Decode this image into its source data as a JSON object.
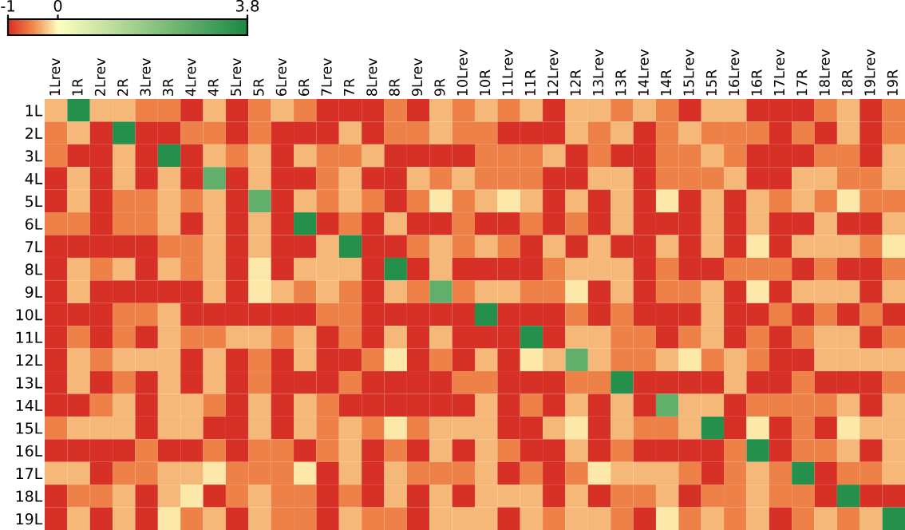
{
  "chart_data": {
    "type": "heatmap",
    "categories": [
      "1Lrev",
      "1R",
      "2Lrev",
      "2R",
      "3Lrev",
      "3R",
      "4Lrev",
      "4R",
      "5Lrev",
      "5R",
      "6Lrev",
      "6R",
      "7Lrev",
      "7R",
      "8Lrev",
      "8R",
      "9Lrev",
      "9R",
      "10Lrev",
      "10R",
      "11Lrev",
      "11R",
      "12Lrev",
      "12R",
      "13Lrev",
      "13R",
      "14Lrev",
      "14R",
      "15Lrev",
      "15R",
      "16Lrev",
      "16R",
      "17Lrev",
      "17R",
      "18Lrev",
      "18R",
      "19Lrev",
      "19R"
    ],
    "y_categories": [
      "1L",
      "2L",
      "3L",
      "4L",
      "5L",
      "6L",
      "7L",
      "8L",
      "9L",
      "10L",
      "11L",
      "12L",
      "13L",
      "14L",
      "15L",
      "16L",
      "17L",
      "18L",
      "19L"
    ],
    "cells": [
      [
        -0.3,
        3.6,
        -0.3,
        -0.3,
        -0.55,
        -0.55,
        -1,
        -0.3,
        -1,
        -0.55,
        -0.3,
        -0.55,
        -1,
        -1,
        -1,
        -0.55,
        -1,
        -0.3,
        -0.55,
        -0.3,
        -0.55,
        -0.3,
        -1,
        -0.3,
        -0.3,
        -0.55,
        -0.3,
        -0.55,
        -1,
        -0.3,
        -0.3,
        -1,
        -1,
        -1,
        -0.55,
        -0.3,
        -1,
        -0.55
      ],
      [
        -0.55,
        -0.3,
        -1,
        3.6,
        -1,
        -1,
        -0.55,
        -0.55,
        -1,
        -0.55,
        -1,
        -1,
        -1,
        -0.3,
        -1,
        -0.55,
        -0.55,
        -0.3,
        -0.55,
        -0.55,
        -1,
        -1,
        -1,
        -0.3,
        -0.55,
        -0.3,
        -1,
        -0.55,
        -0.3,
        -0.55,
        -0.55,
        -0.55,
        -1,
        -0.55,
        -1,
        -0.3,
        -1,
        -0.55
      ],
      [
        -0.55,
        -1,
        -1,
        -0.3,
        -1,
        3.6,
        -1,
        -0.3,
        -0.55,
        -0.3,
        -1,
        -0.3,
        -0.55,
        -0.55,
        -0.3,
        -1,
        -1,
        -1,
        -1,
        -0.55,
        -0.55,
        -0.55,
        -0.3,
        -1,
        -0.55,
        -1,
        -1,
        -0.55,
        -0.55,
        -0.3,
        -0.55,
        -1,
        -1,
        -1,
        -0.55,
        -0.55,
        -1,
        -0.3
      ],
      [
        -1,
        -0.3,
        -1,
        -0.3,
        -1,
        -0.3,
        -1,
        2.6,
        -1,
        -0.3,
        -1,
        -1,
        -0.55,
        -0.3,
        -1,
        -1,
        -0.3,
        -0.55,
        -0.3,
        -0.55,
        -0.55,
        -0.55,
        -1,
        -1,
        -0.3,
        -0.3,
        -1,
        -0.55,
        -0.55,
        -0.55,
        -0.3,
        -1,
        -1,
        -0.3,
        -0.3,
        -0.55,
        -0.55,
        -0.3
      ],
      [
        -1,
        -0.3,
        -1,
        -0.55,
        -0.55,
        -0.3,
        -0.55,
        -0.3,
        -1,
        2.6,
        -1,
        -0.3,
        -0.55,
        -0.3,
        -0.55,
        -1,
        -0.55,
        -0.1,
        -0.55,
        -0.3,
        -0.1,
        -0.3,
        -1,
        -0.3,
        -1,
        -0.3,
        -1,
        -0.1,
        -1,
        -0.3,
        -1,
        -0.3,
        -0.55,
        -0.3,
        -0.55,
        -0.1,
        -0.55,
        -0.55
      ],
      [
        -0.55,
        -0.55,
        -1,
        -0.55,
        -0.55,
        -0.3,
        -1,
        -0.3,
        -1,
        -0.3,
        -1,
        3.6,
        -1,
        -0.55,
        -1,
        -0.3,
        -1,
        -1,
        -0.55,
        -1,
        -1,
        -0.55,
        -1,
        -0.55,
        -1,
        -0.3,
        -1,
        -1,
        -1,
        -0.3,
        -1,
        -0.3,
        -1,
        -1,
        -0.3,
        -1,
        -1,
        -0.3
      ],
      [
        -1,
        -1,
        -1,
        -1,
        -1,
        -0.55,
        -0.55,
        -0.3,
        -1,
        -0.3,
        -1,
        -1,
        -0.3,
        3.6,
        -1,
        -1,
        -0.55,
        -0.3,
        -0.55,
        -0.3,
        -0.55,
        -1,
        -0.3,
        -1,
        -0.3,
        -1,
        -1,
        -0.3,
        -1,
        -0.3,
        -1,
        -0.1,
        -1,
        -0.3,
        -0.3,
        -0.3,
        -0.55,
        -0.1
      ],
      [
        -1,
        -0.3,
        -0.55,
        -0.3,
        -1,
        -0.3,
        -0.55,
        -0.3,
        -1,
        -0.1,
        -1,
        -0.3,
        -0.3,
        -0.3,
        -1,
        3.6,
        -1,
        -0.3,
        -1,
        -1,
        -1,
        -1,
        -0.55,
        -0.3,
        -0.3,
        -0.3,
        -1,
        -0.55,
        -1,
        -1,
        -0.55,
        -0.55,
        -0.55,
        -1,
        -0.55,
        -1,
        -1,
        -0.55
      ],
      [
        -1,
        -0.3,
        -1,
        -1,
        -1,
        -1,
        -1,
        -0.3,
        -1,
        -0.1,
        -0.3,
        -0.55,
        -0.3,
        -0.55,
        -1,
        -0.3,
        -0.55,
        2.6,
        -0.55,
        -0.3,
        -0.3,
        -0.55,
        -0.55,
        -0.1,
        -1,
        -0.3,
        -1,
        -0.55,
        -0.55,
        -0.3,
        -1,
        -0.1,
        -1,
        -0.3,
        -0.3,
        -0.3,
        -1,
        -0.3
      ],
      [
        -1,
        -1,
        -1,
        -0.55,
        -0.55,
        -0.3,
        -1,
        -1,
        -1,
        -1,
        -1,
        -1,
        -0.55,
        -0.55,
        -1,
        -1,
        -1,
        -1,
        -1,
        3.6,
        -1,
        -1,
        -1,
        -0.55,
        -1,
        -0.55,
        -1,
        -1,
        -1,
        -0.3,
        -1,
        -1,
        -0.55,
        -1,
        -0.55,
        -1,
        -0.55,
        -1
      ],
      [
        -1,
        -0.55,
        -1,
        -0.55,
        -1,
        -0.3,
        -0.55,
        -0.55,
        -0.3,
        -0.3,
        -0.55,
        -0.3,
        -1,
        -0.55,
        -1,
        -0.3,
        -1,
        -0.3,
        -1,
        -1,
        -1,
        3.6,
        -1,
        -0.3,
        -0.3,
        -0.55,
        -0.55,
        -1,
        -0.55,
        -0.3,
        -1,
        -0.55,
        -1,
        -0.55,
        -0.3,
        -0.3,
        -1,
        -0.55
      ],
      [
        -1,
        -0.3,
        -0.55,
        -0.3,
        -0.3,
        -0.3,
        -1,
        -0.3,
        -1,
        -0.55,
        -1,
        -0.3,
        -1,
        -1,
        -0.55,
        -0.1,
        -1,
        -0.55,
        -1,
        -0.3,
        -1,
        -0.1,
        -0.3,
        2.6,
        -0.3,
        -0.55,
        -0.55,
        -0.3,
        -0.1,
        -0.55,
        -0.3,
        -0.55,
        -1,
        -1,
        -0.3,
        -0.3,
        -0.3,
        -0.3
      ],
      [
        -1,
        -0.3,
        -1,
        -0.55,
        -1,
        -0.3,
        -1,
        -0.3,
        -1,
        -0.55,
        -1,
        -1,
        -1,
        -0.55,
        -1,
        -1,
        -1,
        -1,
        -0.55,
        -0.55,
        -1,
        -1,
        -1,
        -0.55,
        -0.55,
        3.6,
        -1,
        -1,
        -1,
        -1,
        -0.3,
        -1,
        -1,
        -0.55,
        -1,
        -1,
        -1,
        -0.55
      ],
      [
        -1,
        -1,
        -0.55,
        -0.3,
        -1,
        -0.3,
        -0.3,
        -0.55,
        -1,
        -0.3,
        -1,
        -0.3,
        -0.55,
        -1,
        -1,
        -1,
        -1,
        -1,
        -1,
        -0.3,
        -1,
        -0.55,
        -1,
        -0.3,
        -1,
        -0.3,
        -1,
        2.6,
        -0.3,
        -0.3,
        -1,
        -0.55,
        -0.55,
        -0.55,
        -0.55,
        -0.3,
        -1,
        -0.3
      ],
      [
        -0.55,
        -0.3,
        -0.3,
        -0.3,
        -1,
        -0.3,
        -0.3,
        -1,
        -1,
        -0.3,
        -1,
        -0.3,
        -0.55,
        -0.3,
        -0.55,
        -0.1,
        -0.55,
        -0.3,
        -0.3,
        -0.3,
        -1,
        -1,
        -0.3,
        -0.1,
        -1,
        -0.3,
        -0.55,
        -0.55,
        -0.3,
        3.6,
        -1,
        -0.1,
        -1,
        -0.55,
        -1,
        -0.1,
        -0.3,
        -0.3
      ],
      [
        -1,
        -1,
        -1,
        -1,
        -0.55,
        -1,
        -1,
        -0.55,
        -1,
        -0.55,
        -0.55,
        -1,
        -0.55,
        -0.3,
        -1,
        -0.55,
        -1,
        -0.3,
        -1,
        -0.3,
        -0.55,
        -1,
        -1,
        -0.3,
        -1,
        -0.55,
        -1,
        -1,
        -1,
        -1,
        -0.55,
        3.6,
        -1,
        -0.55,
        -0.55,
        -0.3,
        -1,
        -0.3
      ],
      [
        -0.3,
        -0.3,
        -1,
        -0.55,
        -0.55,
        -0.3,
        -0.3,
        -0.1,
        -0.55,
        -0.55,
        -0.55,
        -0.1,
        -1,
        -0.3,
        -1,
        -0.3,
        -0.55,
        -0.55,
        -0.55,
        -0.3,
        -1,
        -0.55,
        -1,
        -0.55,
        -0.1,
        -0.3,
        -0.3,
        -0.3,
        -0.55,
        -1,
        -0.55,
        -0.3,
        -0.55,
        3.6,
        -1,
        -0.55,
        -0.55,
        -0.3
      ],
      [
        -1,
        -0.55,
        -0.55,
        -0.3,
        -1,
        -0.3,
        -0.1,
        -1,
        -0.55,
        -0.3,
        -0.55,
        -0.55,
        -1,
        -0.55,
        -1,
        -0.3,
        -1,
        -0.3,
        -1,
        -0.3,
        -0.3,
        -0.3,
        -1,
        -0.3,
        -1,
        -0.55,
        -0.55,
        -0.3,
        -1,
        -0.55,
        -0.55,
        -0.3,
        -0.55,
        -0.55,
        -1,
        3.6,
        -1,
        -1
      ],
      [
        -1,
        -0.3,
        -1,
        -0.3,
        -1,
        -0.1,
        -0.55,
        -0.3,
        -1,
        -0.3,
        -0.55,
        -0.55,
        -1,
        -0.3,
        -0.55,
        -0.55,
        -1,
        -0.3,
        -0.3,
        -0.3,
        -1,
        -0.3,
        -0.55,
        -0.3,
        -0.3,
        -0.55,
        -1,
        -0.1,
        -0.55,
        -0.3,
        -0.55,
        -0.3,
        -1,
        -0.55,
        -0.3,
        -0.55,
        -0.3,
        3.6
      ]
    ],
    "clim": [
      -1,
      3.8
    ],
    "cticks": [
      -1,
      0,
      3.8
    ]
  }
}
